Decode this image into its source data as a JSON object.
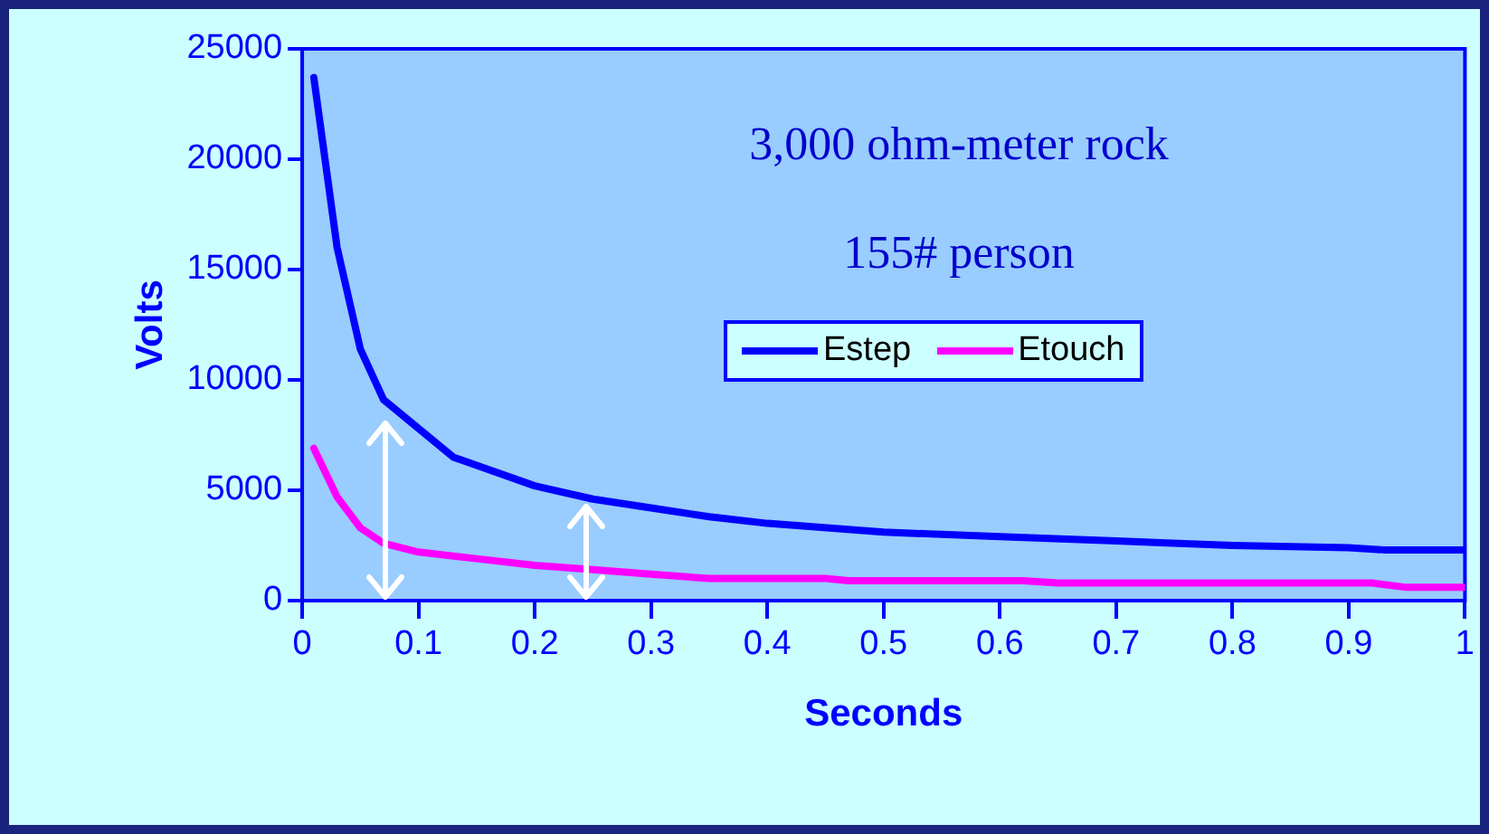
{
  "chart_data": {
    "type": "line",
    "xlabel": "Seconds",
    "ylabel": "Volts",
    "annotations": [
      "3,000 ohm-meter rock",
      "155# person"
    ],
    "series": [
      {
        "name": "Estep",
        "color": "#0000ff",
        "x": [
          0.01,
          0.03,
          0.05,
          0.07,
          0.1,
          0.13,
          0.2,
          0.25,
          0.3,
          0.35,
          0.4,
          0.5,
          0.6,
          0.7,
          0.8,
          0.9,
          0.93,
          1.0
        ],
        "values": [
          23700,
          16000,
          11400,
          9100,
          7800,
          6500,
          5200,
          4600,
          4200,
          3800,
          3500,
          3100,
          2900,
          2700,
          2500,
          2400,
          2300,
          2300
        ]
      },
      {
        "name": "Etouch",
        "color": "#ff00ff",
        "x": [
          0.01,
          0.03,
          0.05,
          0.07,
          0.1,
          0.15,
          0.2,
          0.25,
          0.3,
          0.35,
          0.45,
          0.47,
          0.62,
          0.65,
          0.92,
          0.95,
          1.0
        ],
        "values": [
          6900,
          4700,
          3300,
          2600,
          2200,
          1900,
          1600,
          1400,
          1200,
          1000,
          1000,
          900,
          900,
          800,
          800,
          600,
          600
        ]
      }
    ],
    "xlim": [
      0,
      1
    ],
    "xticks": [
      0,
      0.1,
      0.2,
      0.3,
      0.4,
      0.5,
      0.6,
      0.7,
      0.8,
      0.9,
      1
    ],
    "ylim": [
      0,
      25000
    ],
    "yticks": [
      0,
      5000,
      10000,
      15000,
      20000,
      25000
    ],
    "grid": false,
    "legend": "right",
    "marker": "none",
    "line_style": "solid"
  }
}
